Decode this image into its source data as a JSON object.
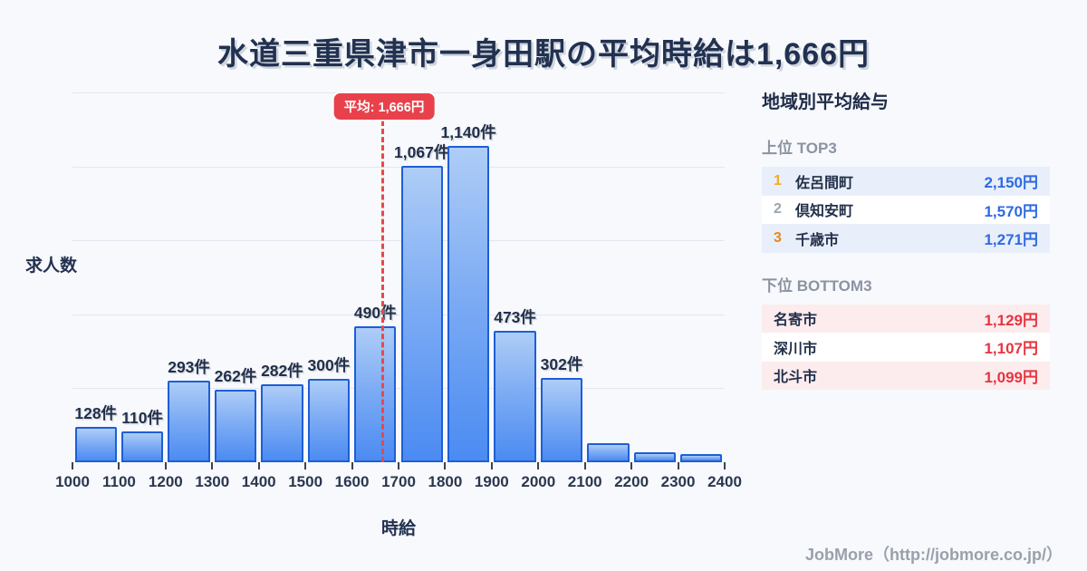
{
  "page": {
    "title": "水道三重県津市一身田駅の平均時給は1,666円",
    "footer": "JobMore（http://jobmore.co.jp/）"
  },
  "colors": {
    "background": "#f7f9fc",
    "bar_border": "#1e5ed6",
    "bar_fill_top": "#aecdf7",
    "bar_fill_bottom": "#4b8bf2",
    "average_line": "#e84848",
    "average_badge_bg": "#e8414c",
    "top3_value": "#2d6ae3",
    "bottom3_value": "#e8343f",
    "rank1": "#f2ab1d",
    "rank2": "#9aa4ae",
    "rank3": "#e8871e",
    "top3_row_bg": "#e9effa",
    "bottom3_row_bg": "#fcecee"
  },
  "chart_data": {
    "type": "bar",
    "title": "",
    "xlabel": "時給",
    "ylabel": "求人数",
    "x_bin_start": 1000,
    "x_bin_width": 100,
    "x_tick_labels": [
      "1000",
      "1100",
      "1200",
      "1300",
      "1400",
      "1500",
      "1600",
      "1700",
      "1800",
      "1900",
      "2000",
      "2100",
      "2200",
      "2300",
      "2400"
    ],
    "values": [
      128,
      110,
      293,
      262,
      282,
      300,
      490,
      1067,
      1140,
      473,
      302,
      70,
      35,
      30
    ],
    "bar_labels": [
      "128件",
      "110件",
      "293件",
      "262件",
      "282件",
      "300件",
      "490件",
      "1,067件",
      "1,140件",
      "473件",
      "302件",
      "",
      "",
      ""
    ],
    "average_value": 1666,
    "average_label": "平均: 1,666円",
    "ylim": [
      0,
      1332
    ],
    "grid": true,
    "gridline_count": 5
  },
  "sidebar": {
    "title": "地域別平均給与",
    "top3": {
      "header": "上位 TOP3",
      "rows": [
        {
          "rank": "1",
          "name": "佐呂間町",
          "value": "2,150円"
        },
        {
          "rank": "2",
          "name": "倶知安町",
          "value": "1,570円"
        },
        {
          "rank": "3",
          "name": "千歳市",
          "value": "1,271円"
        }
      ]
    },
    "bottom3": {
      "header": "下位 BOTTOM3",
      "rows": [
        {
          "name": "名寄市",
          "value": "1,129円"
        },
        {
          "name": "深川市",
          "value": "1,107円"
        },
        {
          "name": "北斗市",
          "value": "1,099円"
        }
      ]
    }
  }
}
